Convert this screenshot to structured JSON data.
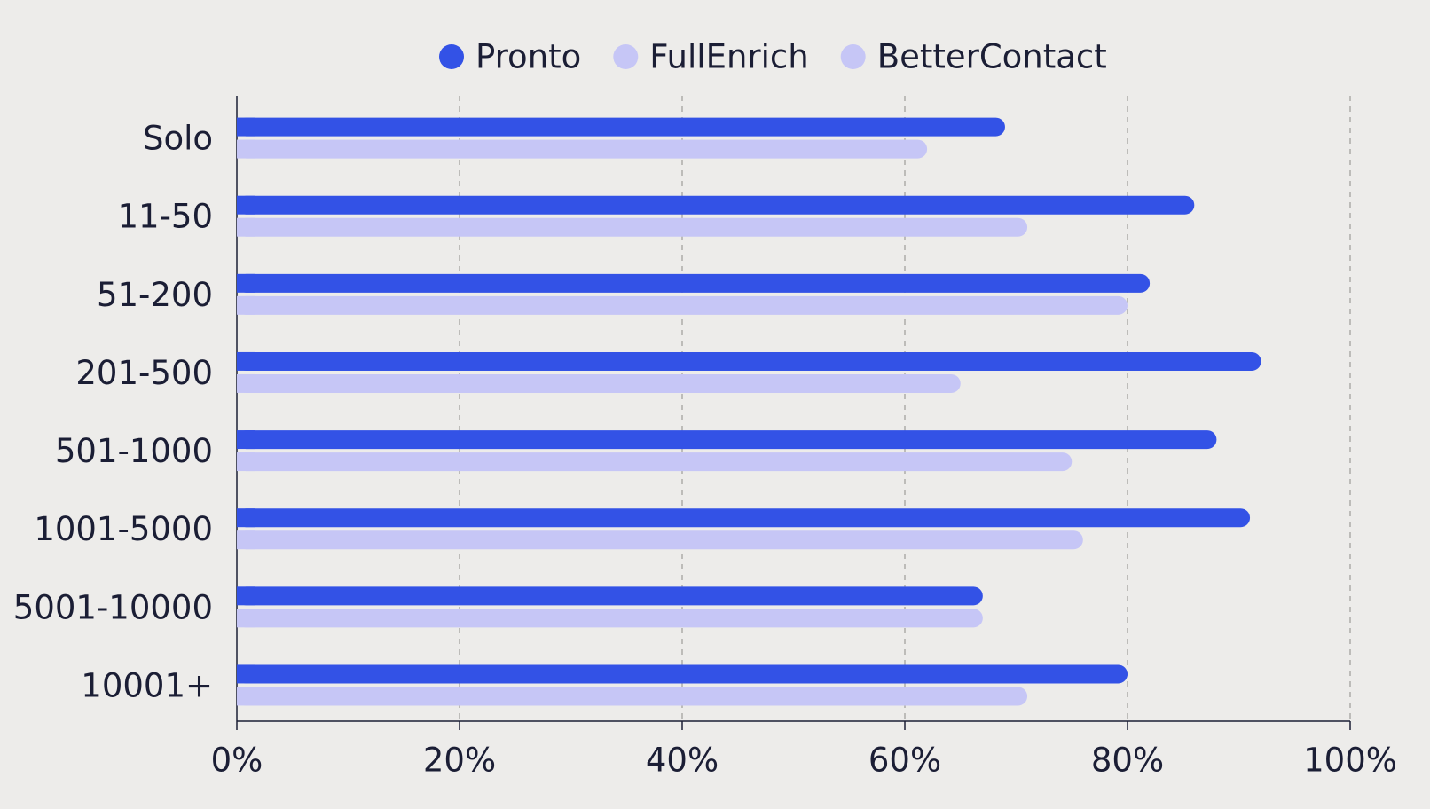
{
  "chart_data": {
    "type": "hbar",
    "categories": [
      "Solo",
      "11-50",
      "51-200",
      "201-500",
      "501-1000",
      "1001-5000",
      "5001-10000",
      "10001+"
    ],
    "series": [
      {
        "name": "Pronto",
        "color": "#3352e6",
        "values": [
          69,
          86,
          82,
          92,
          88,
          91,
          67,
          80
        ]
      },
      {
        "name": "FullEnrich",
        "color": "#c6c6f6",
        "values": [
          62,
          71,
          80,
          65,
          75,
          76,
          67,
          71
        ]
      },
      {
        "name": "BetterContact",
        "color": "#c6c6f6",
        "values": [
          null,
          null,
          null,
          null,
          null,
          null,
          null,
          null
        ]
      }
    ],
    "xlim": [
      0,
      100
    ],
    "xticks": [
      {
        "value": 0,
        "label": "0%"
      },
      {
        "value": 20,
        "label": "20%"
      },
      {
        "value": 40,
        "label": "40%"
      },
      {
        "value": 60,
        "label": "60%"
      },
      {
        "value": 80,
        "label": "80%"
      },
      {
        "value": 100,
        "label": "100%"
      }
    ],
    "grid": true,
    "legend": "top"
  }
}
